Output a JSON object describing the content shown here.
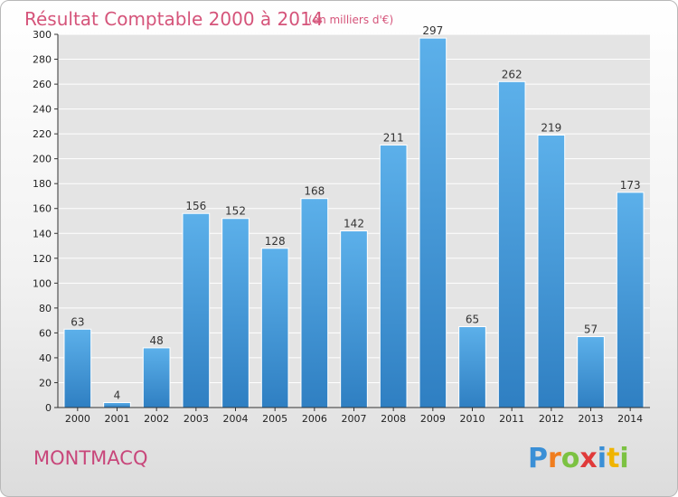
{
  "chart_data": {
    "type": "bar",
    "title": "Résultat Comptable 2000 à 2014",
    "subtitle": "(en milliers d'€)",
    "categories": [
      "2000",
      "2001",
      "2002",
      "2003",
      "2004",
      "2005",
      "2006",
      "2007",
      "2008",
      "2009",
      "2010",
      "2011",
      "2012",
      "2013",
      "2014"
    ],
    "values": [
      63,
      4,
      48,
      156,
      152,
      128,
      168,
      142,
      211,
      297,
      65,
      262,
      219,
      57,
      173
    ],
    "ylim": [
      0,
      300
    ],
    "yticks": [
      0,
      20,
      40,
      60,
      80,
      100,
      120,
      140,
      160,
      180,
      200,
      220,
      240,
      260,
      280,
      300
    ],
    "grid": true,
    "bar_color": "#4aa0de"
  },
  "commune": "MONTMACQ",
  "logo": {
    "letters": [
      "P",
      "r",
      "o",
      "x",
      "i",
      "t",
      "i"
    ],
    "colors": [
      "#3a8fd6",
      "#f07d1e",
      "#7cc242",
      "#e03a3a",
      "#3a8fd6",
      "#f0b400",
      "#7cc242"
    ]
  }
}
